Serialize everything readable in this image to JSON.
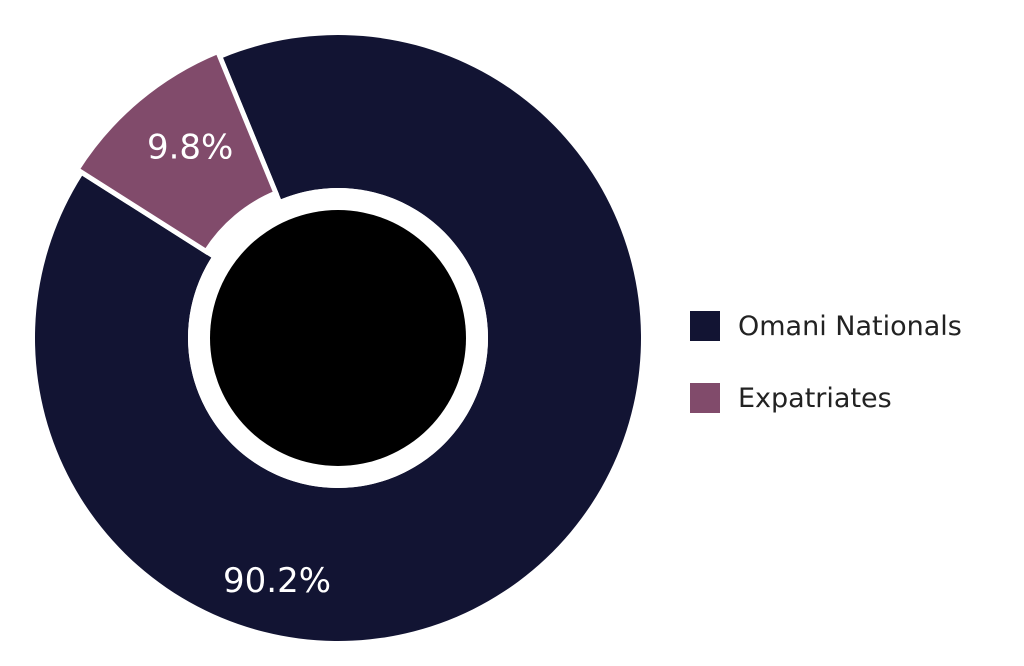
{
  "chart_data": {
    "type": "pie",
    "donut": true,
    "title": "",
    "categories": [
      "Omani Nationals",
      "Expatriates"
    ],
    "values": [
      90.2,
      9.8
    ],
    "value_labels": [
      "90.2%",
      "9.8%"
    ],
    "colors": [
      "#121433",
      "#814B6B"
    ],
    "exploded": [
      false,
      true
    ],
    "center_fill": "#000000",
    "legend": {
      "position": "right",
      "items": [
        {
          "label": "Omani Nationals",
          "color": "#121433"
        },
        {
          "label": "Expatriates",
          "color": "#814B6B"
        }
      ]
    }
  }
}
